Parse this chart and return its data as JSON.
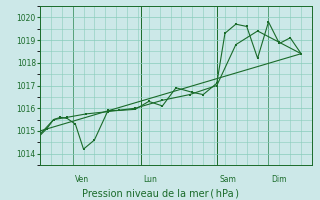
{
  "bg_color": "#cce8e8",
  "grid_color": "#88ccbb",
  "line_color": "#1a6b2a",
  "xlabel": "Pression niveau de la mer ( hPa )",
  "ylim": [
    1013.5,
    1020.5
  ],
  "yticks": [
    1014,
    1015,
    1016,
    1017,
    1018,
    1019,
    1020
  ],
  "day_labels": [
    "Ven",
    "Lun",
    "Sam",
    "Dim"
  ],
  "day_positions": [
    0.12,
    0.37,
    0.65,
    0.84
  ],
  "xlim": [
    0.0,
    1.0
  ],
  "series1_x": [
    0.0,
    0.025,
    0.05,
    0.075,
    0.1,
    0.13,
    0.16,
    0.2,
    0.25,
    0.29,
    0.35,
    0.4,
    0.45,
    0.5,
    0.56,
    0.6,
    0.65,
    0.68,
    0.72,
    0.76,
    0.8,
    0.84,
    0.88,
    0.92,
    0.96
  ],
  "series1_y": [
    1014.8,
    1015.1,
    1015.5,
    1015.6,
    1015.55,
    1015.3,
    1014.2,
    1014.6,
    1015.9,
    1015.9,
    1015.95,
    1016.3,
    1016.1,
    1016.9,
    1016.7,
    1016.6,
    1017.1,
    1019.3,
    1019.7,
    1019.6,
    1018.2,
    1019.8,
    1018.85,
    1019.1,
    1018.4
  ],
  "series2_x": [
    0.0,
    0.05,
    0.1,
    0.17,
    0.25,
    0.35,
    0.45,
    0.55,
    0.65,
    0.72,
    0.8,
    0.88,
    0.96
  ],
  "series2_y": [
    1014.85,
    1015.5,
    1015.6,
    1015.75,
    1015.85,
    1016.0,
    1016.35,
    1016.6,
    1017.0,
    1018.8,
    1019.4,
    1018.9,
    1018.4
  ],
  "trend_x": [
    0.0,
    0.96
  ],
  "trend_y": [
    1015.0,
    1018.4
  ]
}
